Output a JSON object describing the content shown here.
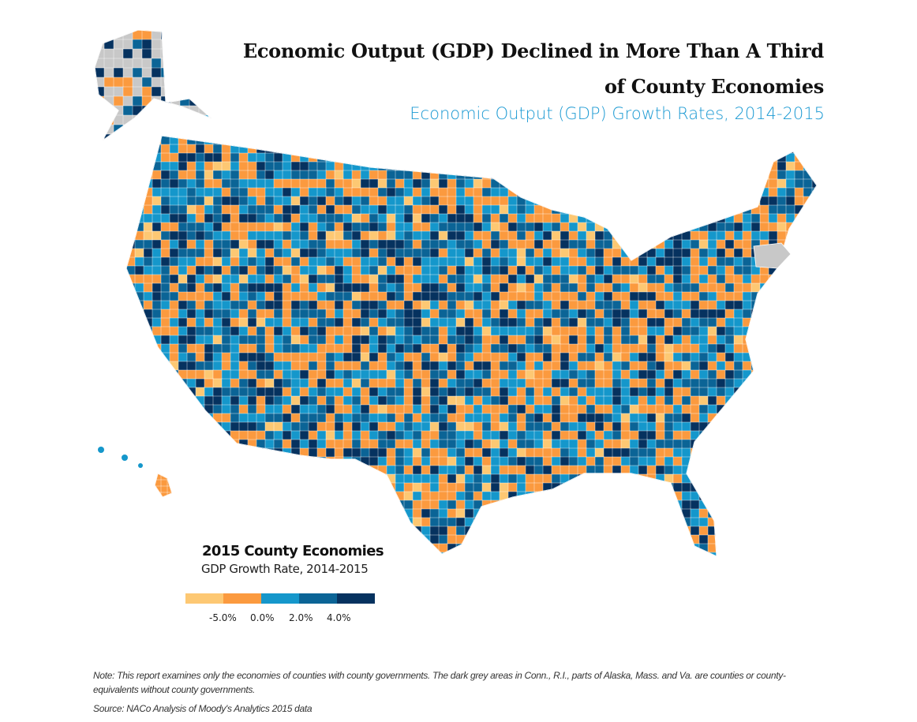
{
  "title_line1": "Economic Output (GDP) Declined in More Than A Third",
  "title_line2": "of County Economies",
  "subtitle": "Economic Output (GDP) Growth Rates, 2014-2015",
  "legend": {
    "title": "2015 County Economies",
    "subtitle": "GDP Growth Rate, 2014-2015",
    "colors": [
      "#fdc873",
      "#fb9a3f",
      "#1597cb",
      "#0b6496",
      "#06325f"
    ],
    "ticks": [
      "-5.0%",
      "0.0%",
      "2.0%",
      "4.0%"
    ]
  },
  "no_data_color": "#c8c8c8",
  "note": "Note: This report examines only the economies of counties with county governments.  The dark grey areas in Conn., R.I., parts of Alaska, Mass. and Va. are counties or county-equivalents without county governments.",
  "source": "Source: NACo Analysis of Moody's Analytics 2015 data"
}
